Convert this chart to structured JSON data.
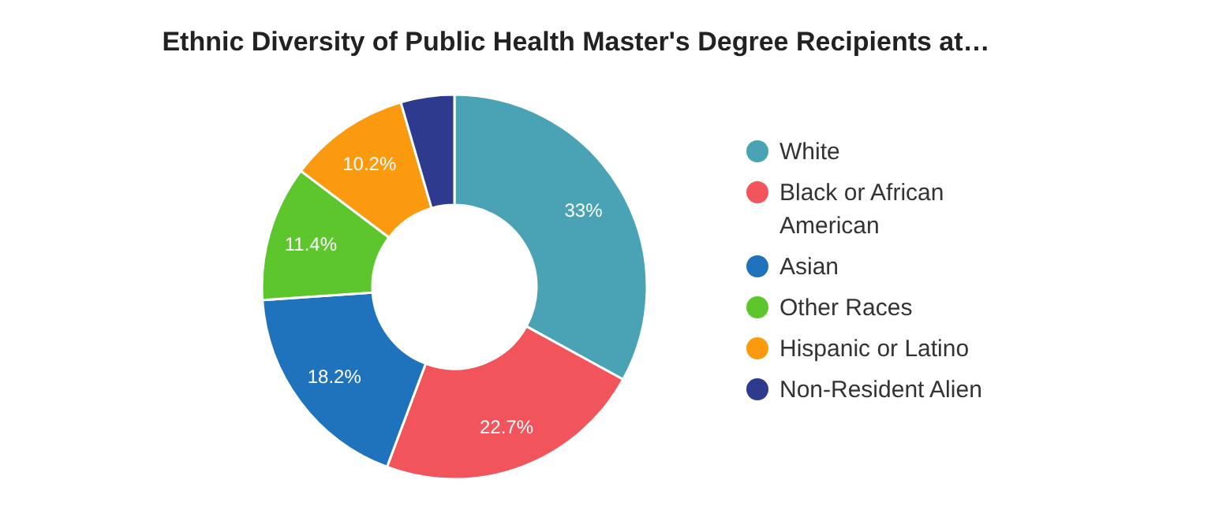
{
  "chart_data": {
    "type": "donut",
    "title": "Ethnic Diversity of Public Health Master's Degree Recipients at…",
    "categories": [
      "White",
      "Black or African American",
      "Asian",
      "Other Races",
      "Hispanic or Latino",
      "Non-Resident Alien"
    ],
    "values": [
      33,
      22.7,
      18.2,
      11.4,
      10.2,
      4.5
    ],
    "value_labels": [
      "33%",
      "22.7%",
      "18.2%",
      "11.4%",
      "10.2%",
      null
    ],
    "colors": [
      "#4aa3b5",
      "#f2545b",
      "#1f73bd",
      "#5ec62d",
      "#fb9a0f",
      "#2d3a8e"
    ],
    "legend": "right"
  }
}
